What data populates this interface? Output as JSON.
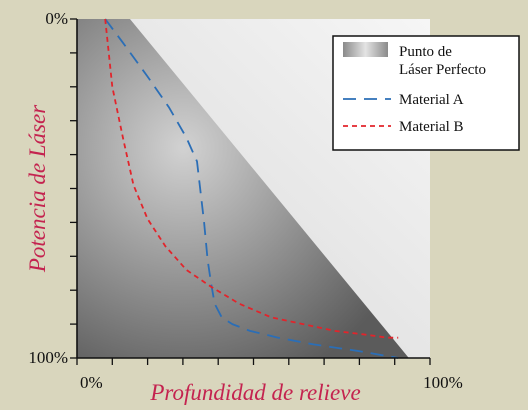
{
  "chart_data": {
    "type": "line",
    "xlabel": "Profundidad de relieve",
    "ylabel": "Potencia de Láser",
    "x_tick_labels": [
      "0%",
      "100%"
    ],
    "y_tick_labels": [
      "0%",
      "100%"
    ],
    "xlim": [
      0,
      100
    ],
    "ylim": [
      0,
      100
    ],
    "y_inverted": true,
    "x_minor_ticks": 10,
    "y_minor_ticks": 10,
    "legend_position": "top-right",
    "legend": [
      {
        "label_lines": [
          "Punto de",
          "Láser Perfecto"
        ],
        "style": "gradient-swatch"
      },
      {
        "label_lines": [
          "Material A"
        ],
        "style": "long-dash"
      },
      {
        "label_lines": [
          "Material B"
        ],
        "style": "short-dash"
      }
    ],
    "perfect_point_region": {
      "name": "Punto de Láser Perfecto",
      "top_left": [
        0,
        0
      ],
      "top_right": [
        15,
        0
      ],
      "bottom_right": [
        94,
        100
      ],
      "bottom_left": [
        0,
        100
      ],
      "color_light": "#d2d2d2",
      "color_dark": "#5b5b5b"
    },
    "series": [
      {
        "name": "Material A",
        "color": "#2b6eb6",
        "dash": "long",
        "x": [
          8,
          13,
          20,
          26,
          31,
          34,
          36,
          37,
          38,
          39,
          41,
          44,
          49,
          57,
          67,
          80,
          91
        ],
        "y": [
          0,
          7,
          17,
          26,
          35,
          42,
          60,
          71,
          78,
          84,
          88,
          90,
          92,
          94,
          96,
          98,
          100
        ]
      },
      {
        "name": "Material B",
        "color": "#e2242b",
        "dash": "short",
        "x": [
          8,
          10,
          13,
          16,
          20,
          25,
          31,
          38,
          46,
          55,
          64,
          73,
          81,
          88,
          91
        ],
        "y": [
          0,
          20,
          35,
          49,
          59,
          67,
          74,
          79,
          84,
          88,
          90,
          92,
          93,
          94,
          94
        ]
      }
    ]
  }
}
